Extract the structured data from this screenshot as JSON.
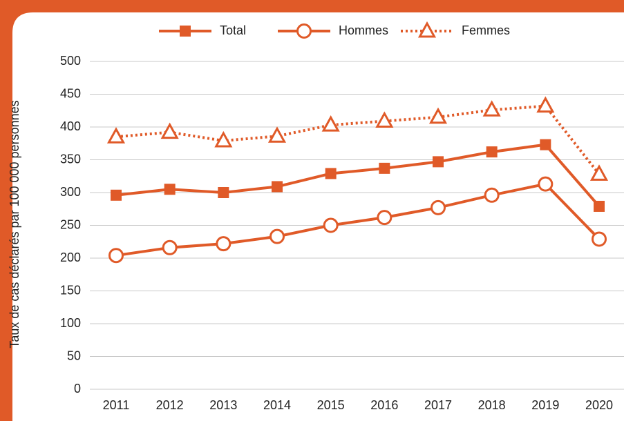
{
  "chart_data": {
    "type": "line",
    "y_label": "Taux de cas déclarés par 100 000 personnes",
    "categories": [
      "2011",
      "2012",
      "2013",
      "2014",
      "2015",
      "2016",
      "2017",
      "2018",
      "2019",
      "2020"
    ],
    "series": [
      {
        "name": "Total",
        "color": "#e05a28",
        "marker": "square",
        "line_style": "solid",
        "values": [
          296,
          305,
          300,
          309,
          329,
          337,
          347,
          362,
          373,
          279
        ]
      },
      {
        "name": "Hommes",
        "color": "#e05a28",
        "marker": "circle",
        "line_style": "solid",
        "values": [
          204,
          216,
          222,
          233,
          250,
          262,
          277,
          296,
          313,
          229
        ]
      },
      {
        "name": "Femmes",
        "color": "#e05a28",
        "marker": "triangle",
        "line_style": "dotted",
        "values": [
          385,
          392,
          379,
          386,
          403,
          409,
          415,
          426,
          432,
          328
        ]
      }
    ],
    "ylim": [
      0,
      500
    ],
    "yticks": [
      0,
      50,
      100,
      150,
      200,
      250,
      300,
      350,
      400,
      450,
      500
    ],
    "grid": true,
    "legend": "top"
  }
}
